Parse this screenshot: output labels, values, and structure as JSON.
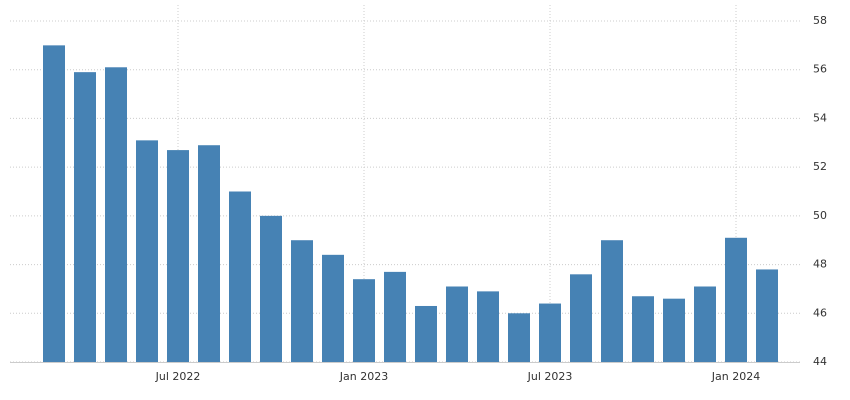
{
  "chart_data": {
    "type": "bar",
    "categories": [
      null,
      null,
      null,
      null,
      "Jul 2022",
      null,
      null,
      null,
      null,
      null,
      "Jan 2023",
      null,
      null,
      null,
      null,
      null,
      "Jul 2023",
      null,
      null,
      null,
      null,
      null,
      "Jan 2024",
      null
    ],
    "values": [
      57.0,
      55.9,
      56.1,
      53.1,
      52.7,
      52.9,
      51.0,
      50.0,
      49.0,
      48.4,
      47.4,
      47.7,
      46.3,
      47.1,
      46.9,
      46.0,
      46.4,
      47.6,
      49.0,
      46.7,
      46.6,
      47.1,
      49.1,
      47.8
    ],
    "color": "#4682b4",
    "ylim": [
      44,
      58
    ],
    "yticks": [
      44,
      46,
      48,
      50,
      52,
      54,
      56,
      58
    ],
    "grid": true
  }
}
